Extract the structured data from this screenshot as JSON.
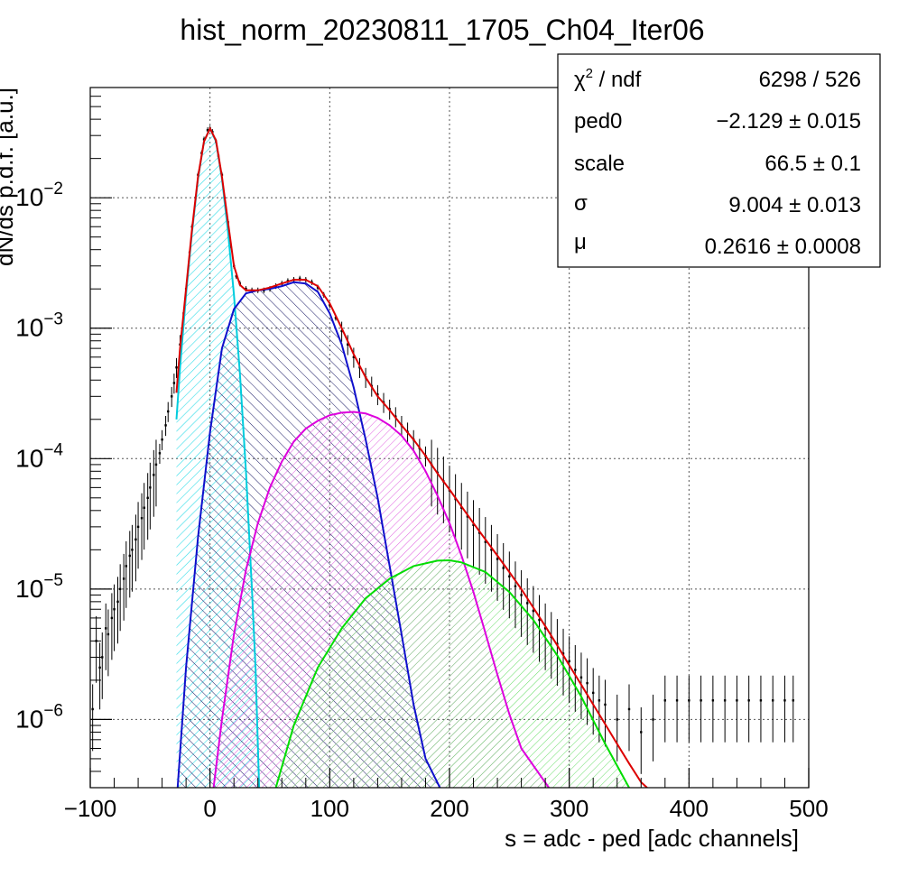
{
  "chart_data": {
    "type": "histogram-fit",
    "title": "hist_norm_20230811_1705_Ch04_Iter06",
    "xlabel": "s = adc - ped [adc channels]",
    "ylabel": "dN/ds p.d.f. [a.u.]",
    "xlim": [
      -100,
      500
    ],
    "ylim": [
      3e-07,
      0.07
    ],
    "yscale": "log",
    "grid": true,
    "x_ticks": [
      -100,
      0,
      100,
      200,
      300,
      400,
      500
    ],
    "y_ticks": [
      {
        "value": 1e-06,
        "mantissa": "10",
        "exp": "−6"
      },
      {
        "value": 1e-05,
        "mantissa": "10",
        "exp": "−5"
      },
      {
        "value": 0.0001,
        "mantissa": "10",
        "exp": "−4"
      },
      {
        "value": 0.001,
        "mantissa": "10",
        "exp": "−3"
      },
      {
        "value": 0.01,
        "mantissa": "10",
        "exp": "−2"
      }
    ],
    "histogram": {
      "color": "#000000",
      "points": [
        [
          -98,
          1.2e-06
        ],
        [
          -95,
          4e-06
        ],
        [
          -92,
          2.5e-06
        ],
        [
          -90,
          3e-06
        ],
        [
          -87,
          5e-06
        ],
        [
          -85,
          4.5e-06
        ],
        [
          -82,
          6e-06
        ],
        [
          -80,
          7e-06
        ],
        [
          -77,
          8e-06
        ],
        [
          -75,
          1e-05
        ],
        [
          -72,
          1.2e-05
        ],
        [
          -70,
          1.5e-05
        ],
        [
          -67,
          1.8e-05
        ],
        [
          -65,
          2e-05
        ],
        [
          -62,
          2.4e-05
        ],
        [
          -60,
          3e-05
        ],
        [
          -57,
          3.5e-05
        ],
        [
          -55,
          4.2e-05
        ],
        [
          -52,
          5e-05
        ],
        [
          -50,
          6e-05
        ],
        [
          -47,
          7.5e-05
        ],
        [
          -45,
          9e-05
        ],
        [
          -42,
          0.00011
        ],
        [
          -40,
          0.00014
        ],
        [
          -37,
          0.00018
        ],
        [
          -35,
          0.00023
        ],
        [
          -32,
          0.0003
        ],
        [
          -30,
          0.00038
        ],
        [
          -28,
          0.0005
        ],
        [
          -25,
          0.00075
        ],
        [
          -22,
          0.0013
        ],
        [
          -20,
          0.002
        ],
        [
          -17,
          0.0038
        ],
        [
          -15,
          0.006
        ],
        [
          -12,
          0.01
        ],
        [
          -10,
          0.015
        ],
        [
          -7,
          0.022
        ],
        [
          -5,
          0.028
        ],
        [
          -2,
          0.033
        ],
        [
          0,
          0.034
        ],
        [
          2,
          0.032
        ],
        [
          5,
          0.027
        ],
        [
          7,
          0.021
        ],
        [
          10,
          0.015
        ],
        [
          12,
          0.01
        ],
        [
          15,
          0.0065
        ],
        [
          17,
          0.0043
        ],
        [
          20,
          0.003
        ],
        [
          22,
          0.0025
        ],
        [
          25,
          0.0022
        ],
        [
          30,
          0.002
        ],
        [
          35,
          0.00195
        ],
        [
          40,
          0.00195
        ],
        [
          45,
          0.00195
        ],
        [
          50,
          0.002
        ],
        [
          55,
          0.0021
        ],
        [
          60,
          0.0022
        ],
        [
          65,
          0.0023
        ],
        [
          70,
          0.00235
        ],
        [
          75,
          0.0024
        ],
        [
          80,
          0.00235
        ],
        [
          85,
          0.00225
        ],
        [
          90,
          0.00205
        ],
        [
          95,
          0.0018
        ],
        [
          100,
          0.0015
        ],
        [
          105,
          0.0012
        ],
        [
          110,
          0.00095
        ],
        [
          115,
          0.00075
        ],
        [
          120,
          0.0006
        ],
        [
          125,
          0.0005
        ],
        [
          130,
          0.00042
        ],
        [
          135,
          0.00036
        ],
        [
          140,
          0.00031
        ],
        [
          145,
          0.00027
        ],
        [
          150,
          0.00024
        ],
        [
          155,
          0.00021
        ],
        [
          160,
          0.00018
        ],
        [
          165,
          0.00016
        ],
        [
          170,
          0.00014
        ],
        [
          175,
          0.00012
        ],
        [
          180,
          0.000105
        ],
        [
          185,
          9e-05
        ],
        [
          190,
          7.8e-05
        ],
        [
          195,
          6.7e-05
        ],
        [
          200,
          5.7e-05
        ],
        [
          205,
          4.9e-05
        ],
        [
          210,
          4.2e-05
        ],
        [
          215,
          3.6e-05
        ],
        [
          220,
          3.1e-05
        ],
        [
          225,
          2.7e-05
        ],
        [
          230,
          2.3e-05
        ],
        [
          235,
          2e-05
        ],
        [
          240,
          1.7e-05
        ],
        [
          245,
          1.45e-05
        ],
        [
          250,
          1.25e-05
        ],
        [
          255,
          1.05e-05
        ],
        [
          260,
          9e-06
        ],
        [
          265,
          7.8e-06
        ],
        [
          270,
          6.8e-06
        ],
        [
          275,
          5.8e-06
        ],
        [
          280,
          5e-06
        ],
        [
          285,
          4.3e-06
        ],
        [
          290,
          3.8e-06
        ],
        [
          295,
          3.2e-06
        ],
        [
          300,
          2.8e-06
        ],
        [
          305,
          2.4e-06
        ],
        [
          310,
          2.1e-06
        ],
        [
          315,
          1.9e-06
        ],
        [
          320,
          1.6e-06
        ],
        [
          325,
          1.4e-06
        ],
        [
          330,
          1.3e-06
        ],
        [
          340,
          1e-06
        ],
        [
          350,
          1.2e-06
        ],
        [
          360,
          8e-07
        ],
        [
          370,
          1e-06
        ],
        [
          380,
          1.4e-06
        ],
        [
          390,
          1.4e-06
        ],
        [
          400,
          1.4e-06
        ],
        [
          410,
          1.4e-06
        ],
        [
          420,
          1.4e-06
        ],
        [
          430,
          1.4e-06
        ],
        [
          440,
          1.4e-06
        ],
        [
          450,
          1.4e-06
        ],
        [
          460,
          1.4e-06
        ],
        [
          470,
          1.4e-06
        ],
        [
          480,
          1.4e-06
        ],
        [
          487,
          1.4e-06
        ]
      ]
    },
    "fit_components": [
      {
        "color": "#00ccdd",
        "hatch": "cyan",
        "points": [
          [
            -28,
            0.0002
          ],
          [
            -25,
            0.0005
          ],
          [
            -20,
            0.0018
          ],
          [
            -15,
            0.0055
          ],
          [
            -10,
            0.014
          ],
          [
            -5,
            0.027
          ],
          [
            0,
            0.034
          ],
          [
            5,
            0.027
          ],
          [
            10,
            0.014
          ],
          [
            15,
            0.0055
          ],
          [
            20,
            0.0018
          ],
          [
            25,
            0.00045
          ],
          [
            30,
            8e-05
          ],
          [
            35,
            1e-05
          ],
          [
            38,
            2.5e-06
          ],
          [
            41,
            3e-07
          ]
        ]
      },
      {
        "color": "#1010cc",
        "hatch": "navy",
        "points": [
          [
            -27,
            3e-07
          ],
          [
            -20,
            2.5e-06
          ],
          [
            -10,
            2.5e-05
          ],
          [
            0,
            0.00016
          ],
          [
            10,
            0.0007
          ],
          [
            20,
            0.0014
          ],
          [
            30,
            0.00185
          ],
          [
            40,
            0.00195
          ],
          [
            50,
            0.002
          ],
          [
            60,
            0.0021
          ],
          [
            70,
            0.00225
          ],
          [
            80,
            0.0022
          ],
          [
            90,
            0.0019
          ],
          [
            100,
            0.0013
          ],
          [
            110,
            0.00075
          ],
          [
            120,
            0.00035
          ],
          [
            130,
            0.00014
          ],
          [
            140,
            5e-05
          ],
          [
            150,
            1.5e-05
          ],
          [
            160,
            4.5e-06
          ],
          [
            170,
            1.3e-06
          ],
          [
            180,
            5e-07
          ],
          [
            192,
            3e-07
          ]
        ]
      },
      {
        "color": "#dd00dd",
        "hatch": "magenta",
        "points": [
          [
            3,
            3e-07
          ],
          [
            10,
            1e-06
          ],
          [
            20,
            4.5e-06
          ],
          [
            30,
            1.4e-05
          ],
          [
            40,
            3.2e-05
          ],
          [
            50,
            6e-05
          ],
          [
            60,
            9.5e-05
          ],
          [
            70,
            0.000135
          ],
          [
            80,
            0.00017
          ],
          [
            90,
            0.000195
          ],
          [
            100,
            0.000215
          ],
          [
            110,
            0.000225
          ],
          [
            120,
            0.000228
          ],
          [
            130,
            0.000222
          ],
          [
            140,
            0.000205
          ],
          [
            150,
            0.00018
          ],
          [
            160,
            0.00015
          ],
          [
            170,
            0.000115
          ],
          [
            180,
            8e-05
          ],
          [
            190,
            5.2e-05
          ],
          [
            200,
            3.2e-05
          ],
          [
            210,
            1.8e-05
          ],
          [
            220,
            9.5e-06
          ],
          [
            230,
            4.6e-06
          ],
          [
            240,
            2.2e-06
          ],
          [
            250,
            1.1e-06
          ],
          [
            260,
            6e-07
          ],
          [
            283,
            3e-07
          ]
        ]
      },
      {
        "color": "#00dd00",
        "hatch": "green",
        "points": [
          [
            55,
            3e-07
          ],
          [
            70,
            9e-07
          ],
          [
            90,
            2.5e-06
          ],
          [
            110,
            5e-06
          ],
          [
            130,
            8.5e-06
          ],
          [
            150,
            1.2e-05
          ],
          [
            170,
            1.5e-05
          ],
          [
            190,
            1.65e-05
          ],
          [
            200,
            1.66e-05
          ],
          [
            210,
            1.6e-05
          ],
          [
            230,
            1.35e-05
          ],
          [
            250,
            9.5e-06
          ],
          [
            270,
            5.8e-06
          ],
          [
            290,
            3.1e-06
          ],
          [
            310,
            1.5e-06
          ],
          [
            330,
            6.5e-07
          ],
          [
            350,
            3e-07
          ]
        ]
      }
    ],
    "total_fit": {
      "color": "#dd0000",
      "points": [
        [
          -28,
          0.00032
        ],
        [
          -25,
          0.0007
        ],
        [
          -20,
          0.002
        ],
        [
          -15,
          0.0058
        ],
        [
          -10,
          0.0145
        ],
        [
          -5,
          0.027
        ],
        [
          0,
          0.034
        ],
        [
          5,
          0.0275
        ],
        [
          10,
          0.0145
        ],
        [
          15,
          0.0065
        ],
        [
          20,
          0.003
        ],
        [
          25,
          0.00215
        ],
        [
          30,
          0.00195
        ],
        [
          40,
          0.00195
        ],
        [
          50,
          0.00205
        ],
        [
          60,
          0.0022
        ],
        [
          70,
          0.00235
        ],
        [
          80,
          0.00235
        ],
        [
          90,
          0.0021
        ],
        [
          100,
          0.00155
        ],
        [
          110,
          0.001
        ],
        [
          120,
          0.00063
        ],
        [
          130,
          0.00042
        ],
        [
          140,
          0.0003
        ],
        [
          150,
          0.000235
        ],
        [
          160,
          0.00018
        ],
        [
          170,
          0.00014
        ],
        [
          180,
          0.000105
        ],
        [
          190,
          7.7e-05
        ],
        [
          200,
          5.8e-05
        ],
        [
          210,
          4.3e-05
        ],
        [
          220,
          3.2e-05
        ],
        [
          230,
          2.4e-05
        ],
        [
          240,
          1.8e-05
        ],
        [
          250,
          1.35e-05
        ],
        [
          260,
          1e-05
        ],
        [
          270,
          7.2e-06
        ],
        [
          280,
          5.2e-06
        ],
        [
          290,
          3.7e-06
        ],
        [
          300,
          2.6e-06
        ],
        [
          310,
          1.85e-06
        ],
        [
          320,
          1.3e-06
        ],
        [
          330,
          9.2e-07
        ],
        [
          340,
          6.5e-07
        ],
        [
          350,
          4.6e-07
        ],
        [
          360,
          3.3e-07
        ],
        [
          365,
          3e-07
        ]
      ]
    }
  },
  "stats_box": {
    "rows": [
      {
        "label": "χ² / ndf",
        "value": "6298 / 526"
      },
      {
        "label": "ped0",
        "value": "−2.129 ± 0.015"
      },
      {
        "label": "scale",
        "value": "66.5 ± 0.1"
      },
      {
        "label": "σ",
        "value": "9.004 ± 0.013"
      },
      {
        "label": "μ",
        "value": "0.2616 ± 0.0008"
      }
    ]
  }
}
